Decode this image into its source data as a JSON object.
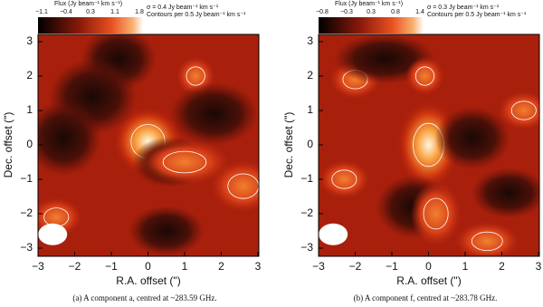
{
  "panels": [
    {
      "colorbar": {
        "title": "Flux (Jy beam⁻¹ km s⁻¹)",
        "ticks": [
          "−1.1",
          "−0.4",
          "0.3",
          "1.1",
          "1.8"
        ]
      },
      "sigma": "σ = 0.4 Jy beam⁻¹ km s⁻¹",
      "contours": "Contours per 0.5 Jy beam⁻¹ km s⁻¹",
      "xlabel": "R.A. offset (\")",
      "ylabel": "Dec. offset (\")",
      "xticks": [
        {
          "value": -3,
          "label": "−3"
        },
        {
          "value": -2,
          "label": "−2"
        },
        {
          "value": -1,
          "label": "−1"
        },
        0,
        1,
        2,
        3
      ],
      "yticks": [
        {
          "value": -3,
          "label": "−3"
        },
        {
          "value": -2,
          "label": "−2"
        },
        {
          "value": -1,
          "label": "−1"
        },
        0,
        1,
        2,
        3
      ],
      "caption": "(a) A component a, centred at ~283.59 GHz."
    },
    {
      "colorbar": {
        "title": "Flux (Jy beam⁻¹ km s⁻¹)",
        "ticks": [
          "−0.8",
          "−0.3",
          "0.3",
          "0.8",
          "1.4"
        ]
      },
      "sigma": "σ = 0.3 Jy beam⁻¹ km s⁻¹",
      "contours": "Contours per 0.5 Jy beam⁻¹ km s⁻¹",
      "xlabel": "R.A. offset (\")",
      "ylabel": "Dec. offset (\")",
      "xticks": [
        {
          "value": -3,
          "label": "−3"
        },
        {
          "value": -2,
          "label": "−2"
        },
        {
          "value": -1,
          "label": "−1"
        },
        0,
        1,
        2,
        3
      ],
      "yticks": [
        {
          "value": -3,
          "label": "−3"
        },
        {
          "value": -2,
          "label": "−2"
        },
        {
          "value": -1,
          "label": "−1"
        },
        0,
        1,
        2,
        3
      ],
      "caption": "(b) A component f, centred at ~283.78 GHz."
    }
  ]
}
